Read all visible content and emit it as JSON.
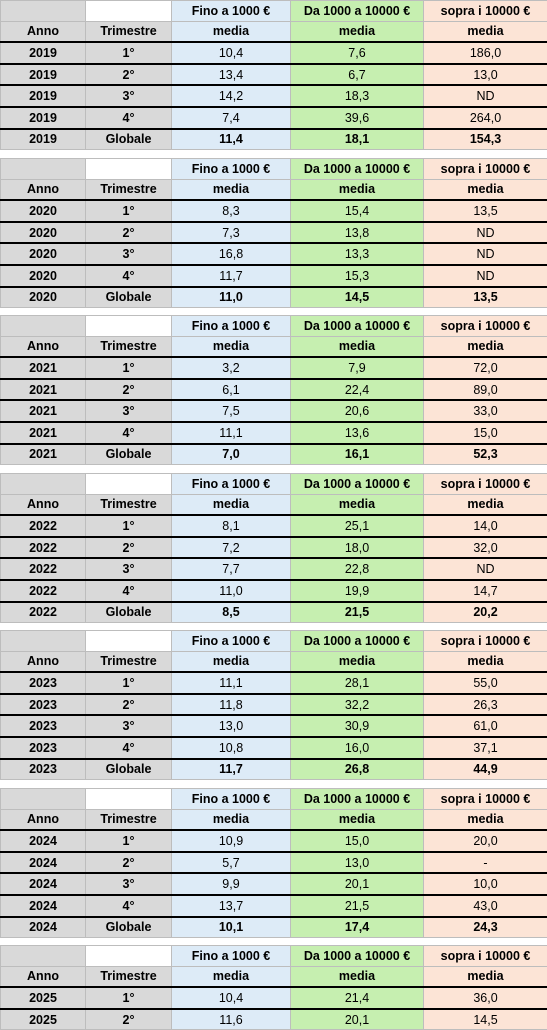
{
  "headers": {
    "col1": "Fino a 1000 €",
    "col2": "Da 1000 a 10000 €",
    "col3": "sopra i 10000 €",
    "anno": "Anno",
    "trimestre": "Trimestre",
    "media": "media"
  },
  "years": [
    {
      "rows": [
        [
          "2019",
          "1°",
          "10,4",
          "7,6",
          "186,0"
        ],
        [
          "2019",
          "2°",
          "13,4",
          "6,7",
          "13,0"
        ],
        [
          "2019",
          "3°",
          "14,2",
          "18,3",
          "ND"
        ],
        [
          "2019",
          "4°",
          "7,4",
          "39,6",
          "264,0"
        ],
        [
          "2019",
          "Globale",
          "11,4",
          "18,1",
          "154,3"
        ]
      ]
    },
    {
      "rows": [
        [
          "2020",
          "1°",
          "8,3",
          "15,4",
          "13,5"
        ],
        [
          "2020",
          "2°",
          "7,3",
          "13,8",
          "ND"
        ],
        [
          "2020",
          "3°",
          "16,8",
          "13,3",
          "ND"
        ],
        [
          "2020",
          "4°",
          "11,7",
          "15,3",
          "ND"
        ],
        [
          "2020",
          "Globale",
          "11,0",
          "14,5",
          "13,5"
        ]
      ]
    },
    {
      "rows": [
        [
          "2021",
          "1°",
          "3,2",
          "7,9",
          "72,0"
        ],
        [
          "2021",
          "2°",
          "6,1",
          "22,4",
          "89,0"
        ],
        [
          "2021",
          "3°",
          "7,5",
          "20,6",
          "33,0"
        ],
        [
          "2021",
          "4°",
          "11,1",
          "13,6",
          "15,0"
        ],
        [
          "2021",
          "Globale",
          "7,0",
          "16,1",
          "52,3"
        ]
      ]
    },
    {
      "rows": [
        [
          "2022",
          "1°",
          "8,1",
          "25,1",
          "14,0"
        ],
        [
          "2022",
          "2°",
          "7,2",
          "18,0",
          "32,0"
        ],
        [
          "2022",
          "3°",
          "7,7",
          "22,8",
          "ND"
        ],
        [
          "2022",
          "4°",
          "11,0",
          "19,9",
          "14,7"
        ],
        [
          "2022",
          "Globale",
          "8,5",
          "21,5",
          "20,2"
        ]
      ]
    },
    {
      "rows": [
        [
          "2023",
          "1°",
          "11,1",
          "28,1",
          "55,0"
        ],
        [
          "2023",
          "2°",
          "11,8",
          "32,2",
          "26,3"
        ],
        [
          "2023",
          "3°",
          "13,0",
          "30,9",
          "61,0"
        ],
        [
          "2023",
          "4°",
          "10,8",
          "16,0",
          "37,1"
        ],
        [
          "2023",
          "Globale",
          "11,7",
          "26,8",
          "44,9"
        ]
      ]
    },
    {
      "rows": [
        [
          "2024",
          "1°",
          "10,9",
          "15,0",
          "20,0"
        ],
        [
          "2024",
          "2°",
          "5,7",
          "13,0",
          "-"
        ],
        [
          "2024",
          "3°",
          "9,9",
          "20,1",
          "10,0"
        ],
        [
          "2024",
          "4°",
          "13,7",
          "21,5",
          "43,0"
        ],
        [
          "2024",
          "Globale",
          "10,1",
          "17,4",
          "24,3"
        ]
      ]
    },
    {
      "rows": [
        [
          "2025",
          "1°",
          "10,4",
          "21,4",
          "36,0"
        ],
        [
          "2025",
          "2°",
          "11,6",
          "20,1",
          "14,5"
        ]
      ]
    }
  ]
}
